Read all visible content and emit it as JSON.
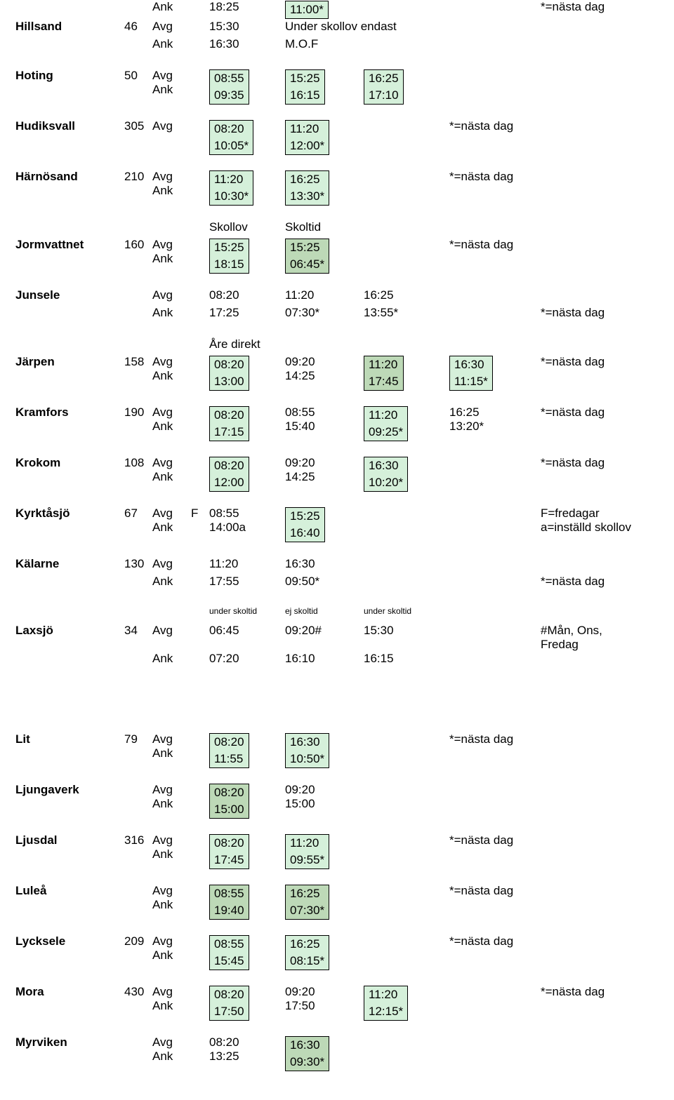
{
  "labels": {
    "avg": "Avg",
    "ank": "Ank",
    "nasta": "*=nästa dag"
  },
  "colors": {
    "light": "#d5f0da",
    "dark": "#bdd9b7"
  },
  "rows": [
    {
      "name": "",
      "km": "",
      "lines": [
        {
          "ad": "Ank",
          "c1": {
            "text": "18:25"
          },
          "c2": {
            "text": "11:00*",
            "box": "l",
            "single": true
          },
          "note": "*=nästa dag"
        }
      ]
    },
    {
      "name": "Hillsand",
      "km": "46",
      "lines": [
        {
          "ad": "Avg",
          "c1": {
            "text": "15:30"
          },
          "note_c2": "Under skollov endast"
        },
        {
          "ad": "Ank",
          "c1": {
            "text": "16:30"
          },
          "note_c2": "M.O.F"
        }
      ]
    },
    {
      "spacer": true
    },
    {
      "name": "Hoting",
      "km": "50",
      "boxed": true,
      "lines": [
        {
          "ad": "Avg",
          "c1": "08:55",
          "c2": "15:25",
          "c3": "16:25"
        },
        {
          "ad": "Ank",
          "c1": "09:35",
          "c2": "16:15",
          "c3": "17:10"
        }
      ],
      "boxes": {
        "c1": "l",
        "c2": "l",
        "c3": "l"
      }
    },
    {
      "spacer": true
    },
    {
      "name": "Hudiksvall",
      "km": "305",
      "boxed": true,
      "lines": [
        {
          "ad": "Avg",
          "c1": "08:20",
          "c2": "11:20"
        },
        {
          "ad": "",
          "c1": "10:05*",
          "c2": "12:00*",
          "note": "*=nästa dag"
        }
      ],
      "boxes": {
        "c1": "l",
        "c2": "l"
      }
    },
    {
      "spacer": true
    },
    {
      "name": "Härnösand",
      "km": "210",
      "boxed": true,
      "lines": [
        {
          "ad": "Avg",
          "c1": "11:20",
          "c2": "16:25"
        },
        {
          "ad": "Ank",
          "c1": "10:30*",
          "c2": "13:30*",
          "note": "*=nästa dag"
        }
      ],
      "boxes": {
        "c1": "l",
        "c2": "l"
      }
    },
    {
      "spacer": true
    },
    {
      "headers": {
        "c1": "Skollov",
        "c2": "Skoltid"
      }
    },
    {
      "name": "Jormvattnet",
      "km": "160",
      "boxed": true,
      "lines": [
        {
          "ad": "Avg",
          "c1": "15:25",
          "c2": "15:25"
        },
        {
          "ad": "Ank",
          "c1": "18:15",
          "c2": "06:45*",
          "note": "*=nästa dag"
        }
      ],
      "boxes": {
        "c1": "l",
        "c2": "d"
      }
    },
    {
      "spacer": true
    },
    {
      "name": "Junsele",
      "km": "",
      "lines": [
        {
          "ad": "Avg",
          "c1": {
            "text": "08:20"
          },
          "c2": {
            "text": "11:20"
          },
          "c3": {
            "text": "16:25"
          }
        },
        {
          "ad": "Ank",
          "c1": {
            "text": "17:25"
          },
          "c2": {
            "text": "07:30*"
          },
          "c3": {
            "text": "13:55*"
          },
          "note_c4": "*=nästa dag"
        }
      ]
    },
    {
      "spacer": true
    },
    {
      "headers": {
        "c1": "Åre direkt",
        "small": false
      }
    },
    {
      "name": "Järpen",
      "km": "158",
      "boxed": true,
      "lines": [
        {
          "ad": "Avg",
          "c1": "08:20",
          "c2p": "09:20",
          "c3": "11:20",
          "c4": "16:30"
        },
        {
          "ad": "Ank",
          "c1": "13:00",
          "c2p": "14:25",
          "c3": "17:45",
          "c4": "11:15*",
          "note_c5": "*=nästa dag"
        }
      ],
      "boxes": {
        "c1": "l",
        "c3": "d",
        "c4": "l"
      }
    },
    {
      "spacer": true
    },
    {
      "name": "Kramfors",
      "km": "190",
      "mixed": true,
      "lines": [
        {
          "ad": "Avg",
          "c1": {
            "text": "08:20",
            "box": "l"
          },
          "c2": {
            "text": "08:55"
          },
          "c3": {
            "text": "11:20",
            "box": "l"
          },
          "c4": {
            "text": "16:25"
          }
        },
        {
          "ad": "Ank",
          "c1": {
            "text": "17:15",
            "box": "l"
          },
          "c2": {
            "text": "15:40"
          },
          "c3": {
            "text": "09:25*",
            "box": "l"
          },
          "c4": {
            "text": "13:20*"
          },
          "note_c5": "*=nästa dag"
        }
      ],
      "boxcols": {
        "c1": "l",
        "c3": "l"
      }
    },
    {
      "spacer": true
    },
    {
      "name": "Krokom",
      "km": "108",
      "mixed": true,
      "lines": [
        {
          "ad": "Avg",
          "c1": {
            "text": "08:20",
            "box": "l"
          },
          "c2": {
            "text": "09:20"
          },
          "c3": {
            "text": "16:30",
            "box": "l"
          }
        },
        {
          "ad": "Ank",
          "c1": {
            "text": "12:00",
            "box": "l"
          },
          "c2": {
            "text": "14:25"
          },
          "c3": {
            "text": "10:20*",
            "box": "l"
          },
          "note_c4": "*=nästa dag"
        }
      ],
      "boxcols": {
        "c1": "l",
        "c3": "l"
      }
    },
    {
      "spacer": true
    },
    {
      "name": "Kyrktåsjö",
      "km": "67",
      "lines": [
        {
          "ad": "Avg",
          "prefix": "F",
          "c1": {
            "text": "08:55"
          },
          "c2": {
            "text": "15:25",
            "box": "l"
          },
          "note": "F=fredagar"
        },
        {
          "ad": "Ank",
          "c1": {
            "text": "14:00a"
          },
          "c2": {
            "text": "16:40",
            "box": "l"
          },
          "note": "a=inställd skollov"
        }
      ],
      "boxcols": {
        "c2": "l"
      }
    },
    {
      "spacer": true
    },
    {
      "name": "Kälarne",
      "km": "130",
      "lines": [
        {
          "ad": "Avg",
          "c1": {
            "text": "11:20"
          },
          "c2": {
            "text": "16:30"
          }
        },
        {
          "ad": "Ank",
          "c1": {
            "text": "17:55"
          },
          "c2": {
            "text": "09:50*"
          },
          "note_c4": "*=nästa dag"
        }
      ]
    },
    {
      "spacer": true
    },
    {
      "headers": {
        "c1": "under skoltid",
        "c2": "ej skoltid",
        "c3": "under skoltid",
        "small": true
      }
    },
    {
      "name": "Laxsjö",
      "km": "34",
      "lines": [
        {
          "ad": "Avg",
          "c1": {
            "text": "06:45"
          },
          "c2": {
            "text": "09:20#"
          },
          "c3": {
            "text": "15:30"
          },
          "note_c4": "#Mån, Ons, Fredag"
        },
        {
          "ad": "Ank",
          "c1": {
            "text": "07:20"
          },
          "c2": {
            "text": "16:10"
          },
          "c3": {
            "text": "16:15"
          }
        }
      ]
    },
    {
      "bigspacer": true
    },
    {
      "name": "Lit",
      "km": "79",
      "boxed": true,
      "lines": [
        {
          "ad": "Avg",
          "c1": "08:20",
          "c2": "16:30"
        },
        {
          "ad": "Ank",
          "c1": "11:55",
          "c2": "10:50*",
          "note": "*=nästa dag"
        }
      ],
      "boxes": {
        "c1": "l",
        "c2": "l"
      }
    },
    {
      "spacer": true
    },
    {
      "name": "Ljungaverk",
      "km": "",
      "mixed": true,
      "lines": [
        {
          "ad": "Avg",
          "c1": {
            "text": "08:20",
            "box": "d"
          },
          "c2": {
            "text": "09:20"
          }
        },
        {
          "ad": "Ank",
          "c1": {
            "text": "15:00",
            "box": "d"
          },
          "c2": {
            "text": "15:00"
          }
        }
      ],
      "boxcols": {
        "c1": "d"
      }
    },
    {
      "spacer": true
    },
    {
      "name": "Ljusdal",
      "km": "316",
      "boxed": true,
      "lines": [
        {
          "ad": "Avg",
          "c1": "08:20",
          "c2": "11:20"
        },
        {
          "ad": "Ank",
          "c1": "17:45",
          "c2": "09:55*",
          "note": "*=nästa dag"
        }
      ],
      "boxes": {
        "c1": "l",
        "c2": "l"
      }
    },
    {
      "spacer": true
    },
    {
      "name": "Luleå",
      "km": "",
      "boxed": true,
      "lines": [
        {
          "ad": "Avg",
          "c1": "08:55",
          "c2": "16:25"
        },
        {
          "ad": "Ank",
          "c1": "19:40",
          "c2": "07:30*",
          "note": "*=nästa dag"
        }
      ],
      "boxes": {
        "c1": "d",
        "c2": "d"
      }
    },
    {
      "spacer": true
    },
    {
      "name": "Lycksele",
      "km": "209",
      "boxed": true,
      "lines": [
        {
          "ad": "Avg",
          "c1": "08:55",
          "c2": "16:25"
        },
        {
          "ad": "Ank",
          "c1": "15:45",
          "c2": "08:15*",
          "note": "*=nästa dag"
        }
      ],
      "boxes": {
        "c1": "l",
        "c2": "l"
      }
    },
    {
      "spacer": true
    },
    {
      "name": "Mora",
      "km": "430",
      "mixed": true,
      "lines": [
        {
          "ad": "Avg",
          "c1": {
            "text": "08:20",
            "box": "l"
          },
          "c2": {
            "text": "09:20"
          },
          "c3": {
            "text": "11:20",
            "box": "l"
          }
        },
        {
          "ad": "Ank",
          "c1": {
            "text": "17:50",
            "box": "l"
          },
          "c2": {
            "text": "17:50"
          },
          "c3": {
            "text": "12:15*",
            "box": "l"
          },
          "note_c4": "*=nästa dag"
        }
      ],
      "boxcols": {
        "c1": "l",
        "c3": "l"
      }
    },
    {
      "spacer": true
    },
    {
      "name": "Myrviken",
      "km": "",
      "mixed": true,
      "lines": [
        {
          "ad": "Avg",
          "c1": {
            "text": "08:20"
          },
          "c2": {
            "text": "16:30",
            "box": "d"
          }
        },
        {
          "ad": "Ank",
          "c1": {
            "text": "13:25"
          },
          "c2": {
            "text": "09:30*",
            "box": "d"
          }
        }
      ],
      "boxcols": {
        "c2": "d"
      }
    }
  ]
}
